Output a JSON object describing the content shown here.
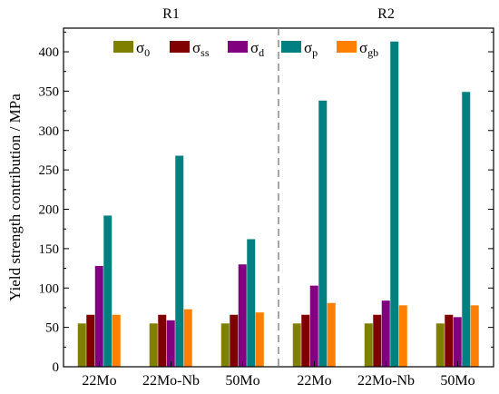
{
  "chart_data": {
    "type": "bar",
    "ylabel": "Yield strength contribution / MPa",
    "ylim": [
      0,
      430
    ],
    "yticks": [
      0,
      50,
      100,
      150,
      200,
      250,
      300,
      350,
      400
    ],
    "categories": [
      "22Mo",
      "22Mo-Nb",
      "50Mo",
      "22Mo",
      "22Mo-Nb",
      "50Mo"
    ],
    "regions": [
      {
        "label": "R1",
        "categories": [
          0,
          1,
          2
        ]
      },
      {
        "label": "R2",
        "categories": [
          3,
          4,
          5
        ]
      }
    ],
    "legend_position": "top",
    "series": [
      {
        "symbol": "σ",
        "subscript": "0",
        "color": "#808000",
        "values": [
          55,
          55,
          55,
          55,
          55,
          55
        ]
      },
      {
        "symbol": "σ",
        "subscript": "ss",
        "color": "#800000",
        "values": [
          66,
          66,
          66,
          66,
          66,
          66
        ]
      },
      {
        "symbol": "σ",
        "subscript": "d",
        "color": "#800080",
        "values": [
          128,
          59,
          130,
          103,
          84,
          63
        ]
      },
      {
        "symbol": "σ",
        "subscript": "p",
        "color": "#008080",
        "values": [
          192,
          268,
          162,
          338,
          413,
          349
        ]
      },
      {
        "symbol": "σ",
        "subscript": "gb",
        "color": "#ff8000",
        "values": [
          66,
          73,
          69,
          81,
          78,
          78
        ]
      }
    ]
  }
}
